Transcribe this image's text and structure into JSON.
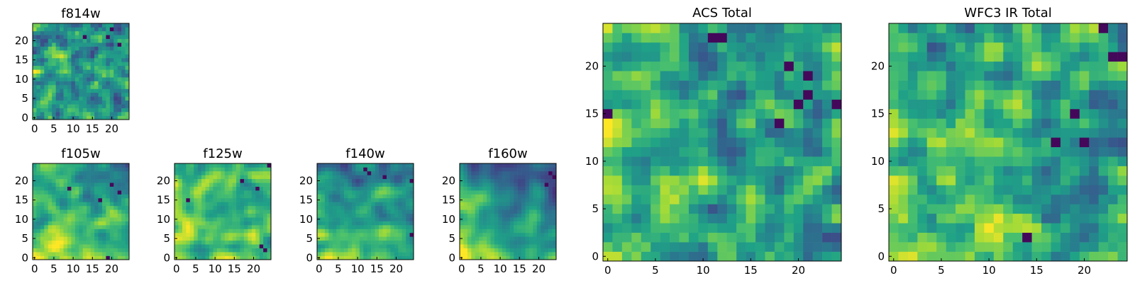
{
  "colormap": [
    "#440154",
    "#46327e",
    "#365c8d",
    "#277f8e",
    "#1fa187",
    "#4ac16d",
    "#a0da39",
    "#fde725"
  ],
  "chart_data": [
    {
      "type": "heatmap",
      "id": "f814w",
      "title": "f814w",
      "grid_size": [
        25,
        25
      ],
      "xlim": [
        -0.5,
        24.5
      ],
      "ylim": [
        -0.5,
        24.5
      ],
      "xticks": [
        0,
        5,
        10,
        15,
        20
      ],
      "yticks": [
        0,
        5,
        10,
        15,
        20
      ],
      "seed": 814,
      "noise": 0.42,
      "smooth": 0.18,
      "base": 0.62,
      "grad_x": 0.0,
      "grad_y": 0.0,
      "dark_spots": [
        [
          21,
          13
        ],
        [
          23,
          20
        ],
        [
          19,
          22
        ],
        [
          21,
          19
        ]
      ]
    },
    {
      "type": "heatmap",
      "id": "f105w",
      "title": "f105w",
      "grid_size": [
        25,
        25
      ],
      "xlim": [
        -0.5,
        24.5
      ],
      "ylim": [
        -0.5,
        24.5
      ],
      "xticks": [
        0,
        5,
        10,
        15,
        20
      ],
      "yticks": [
        0,
        5,
        10,
        15,
        20
      ],
      "seed": 105,
      "noise": 0.3,
      "smooth": 0.55,
      "base": 0.62,
      "grad_x": -0.22,
      "grad_y": -0.25,
      "dark_spots": [
        [
          0,
          19
        ],
        [
          18,
          9
        ],
        [
          19,
          20
        ],
        [
          15,
          17
        ],
        [
          17,
          22
        ]
      ]
    },
    {
      "type": "heatmap",
      "id": "f125w",
      "title": "f125w",
      "grid_size": [
        25,
        25
      ],
      "xlim": [
        -0.5,
        24.5
      ],
      "ylim": [
        -0.5,
        24.5
      ],
      "xticks": [
        0,
        5,
        10,
        15,
        20
      ],
      "yticks": [
        0,
        5,
        10,
        15,
        20
      ],
      "seed": 125,
      "noise": 0.3,
      "smooth": 0.55,
      "base": 0.68,
      "grad_x": -0.15,
      "grad_y": -0.1,
      "dark_spots": [
        [
          2,
          23
        ],
        [
          3,
          22
        ],
        [
          20,
          17
        ],
        [
          24,
          24
        ],
        [
          18,
          21
        ],
        [
          15,
          3
        ]
      ]
    },
    {
      "type": "heatmap",
      "id": "f140w",
      "title": "f140w",
      "grid_size": [
        25,
        25
      ],
      "xlim": [
        -0.5,
        24.5
      ],
      "ylim": [
        -0.5,
        24.5
      ],
      "xticks": [
        0,
        5,
        10,
        15,
        20
      ],
      "yticks": [
        0,
        5,
        10,
        15,
        20
      ],
      "seed": 140,
      "noise": 0.3,
      "smooth": 0.55,
      "base": 0.6,
      "grad_x": -0.2,
      "grad_y": -0.3,
      "dark_spots": [
        [
          22,
          13
        ],
        [
          23,
          12
        ],
        [
          21,
          17
        ],
        [
          20,
          24
        ],
        [
          6,
          24
        ]
      ]
    },
    {
      "type": "heatmap",
      "id": "f160w",
      "title": "f160w",
      "grid_size": [
        25,
        25
      ],
      "xlim": [
        -0.5,
        24.5
      ],
      "ylim": [
        -0.5,
        24.5
      ],
      "xticks": [
        0,
        5,
        10,
        15,
        20
      ],
      "yticks": [
        0,
        5,
        10,
        15,
        20
      ],
      "seed": 160,
      "noise": 0.25,
      "smooth": 0.65,
      "base": 0.55,
      "grad_x": -0.3,
      "grad_y": -0.45,
      "dark_spots": [
        [
          22,
          23
        ],
        [
          21,
          24
        ],
        [
          19,
          22
        ]
      ]
    },
    {
      "type": "heatmap",
      "id": "acs-total",
      "title": "ACS Total",
      "grid_size": [
        25,
        25
      ],
      "xlim": [
        -0.5,
        24.5
      ],
      "ylim": [
        -0.5,
        24.5
      ],
      "xticks": [
        0,
        5,
        10,
        15,
        20
      ],
      "yticks": [
        0,
        5,
        10,
        15,
        20
      ],
      "seed": 900,
      "noise": 0.38,
      "smooth": 0.3,
      "base": 0.62,
      "grad_x": -0.15,
      "grad_y": -0.05,
      "dark_spots": [
        [
          23,
          11
        ],
        [
          23,
          12
        ],
        [
          15,
          0
        ],
        [
          14,
          18
        ],
        [
          20,
          19
        ],
        [
          19,
          21
        ],
        [
          16,
          24
        ],
        [
          16,
          20
        ],
        [
          17,
          21
        ]
      ]
    },
    {
      "type": "heatmap",
      "id": "wfc3-ir-total",
      "title": "WFC3 IR Total",
      "grid_size": [
        25,
        25
      ],
      "xlim": [
        -0.5,
        24.5
      ],
      "ylim": [
        -0.5,
        24.5
      ],
      "xticks": [
        0,
        5,
        10,
        15,
        20
      ],
      "yticks": [
        0,
        5,
        10,
        15,
        20
      ],
      "seed": 777,
      "noise": 0.36,
      "smooth": 0.35,
      "base": 0.6,
      "grad_x": -0.12,
      "grad_y": -0.05,
      "dark_spots": [
        [
          24,
          22
        ],
        [
          21,
          24
        ],
        [
          21,
          23
        ],
        [
          15,
          19
        ],
        [
          12,
          17
        ],
        [
          12,
          20
        ],
        [
          2,
          14
        ]
      ]
    }
  ]
}
